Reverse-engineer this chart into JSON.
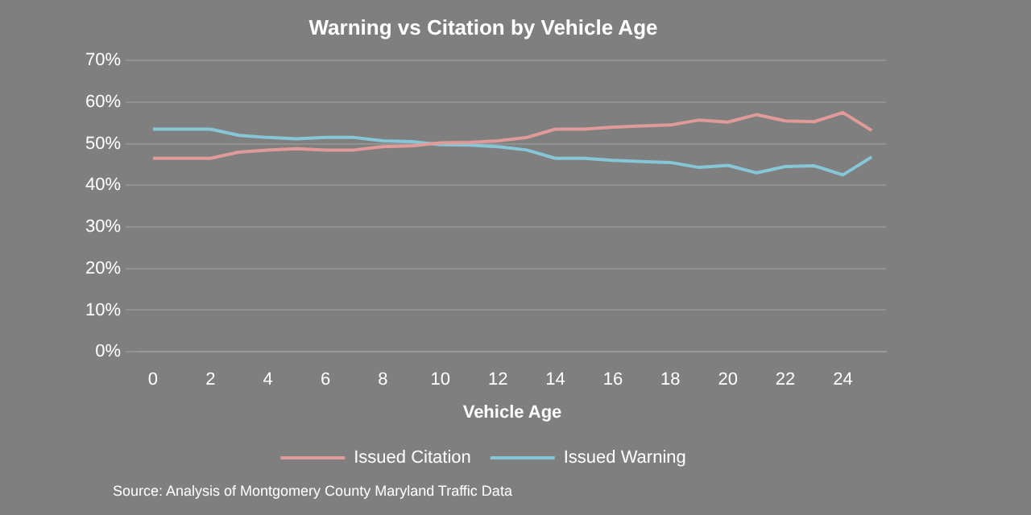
{
  "chart_data": {
    "type": "line",
    "title": "Warning vs Citation by Vehicle Age",
    "xlabel": "Vehicle Age",
    "x": [
      0,
      1,
      2,
      3,
      4,
      5,
      6,
      7,
      8,
      9,
      10,
      11,
      12,
      13,
      14,
      15,
      16,
      17,
      18,
      19,
      20,
      21,
      22,
      23,
      24,
      25
    ],
    "xlim": [
      -0.5,
      25.5
    ],
    "xticks": [
      0,
      2,
      4,
      6,
      8,
      10,
      12,
      14,
      16,
      18,
      20,
      22,
      24
    ],
    "series": [
      {
        "name": "Issued Citation",
        "color": "#e09a9a",
        "values": [
          46.5,
          46.5,
          46.5,
          48,
          48.5,
          48.8,
          48.5,
          48.5,
          49.3,
          49.5,
          50.2,
          50.3,
          50.7,
          51.5,
          53.5,
          53.5,
          54,
          54.3,
          54.5,
          55.7,
          55.2,
          57,
          55.5,
          55.3,
          57.5,
          53.2
        ]
      },
      {
        "name": "Issued Warning",
        "color": "#86c6d6",
        "values": [
          53.5,
          53.5,
          53.5,
          52,
          51.5,
          51.2,
          51.5,
          51.5,
          50.7,
          50.5,
          49.8,
          49.7,
          49.3,
          48.5,
          46.5,
          46.5,
          46,
          45.7,
          45.5,
          44.3,
          44.8,
          43,
          44.5,
          44.7,
          42.5,
          46.8
        ]
      }
    ],
    "ylim": [
      0,
      70
    ],
    "yticks": [
      {
        "value": 0,
        "label": "0%"
      },
      {
        "value": 10,
        "label": "10%"
      },
      {
        "value": 20,
        "label": "20%"
      },
      {
        "value": 30,
        "label": "30%"
      },
      {
        "value": 40,
        "label": "40%"
      },
      {
        "value": 50,
        "label": "50%"
      },
      {
        "value": 60,
        "label": "60%"
      },
      {
        "value": 70,
        "label": "70%"
      }
    ],
    "grid": "y",
    "legend": "bottom",
    "marker": "none",
    "line_style": "solid",
    "annotations": [
      "Source: Analysis of Montgomery County Maryland Traffic Data"
    ]
  }
}
